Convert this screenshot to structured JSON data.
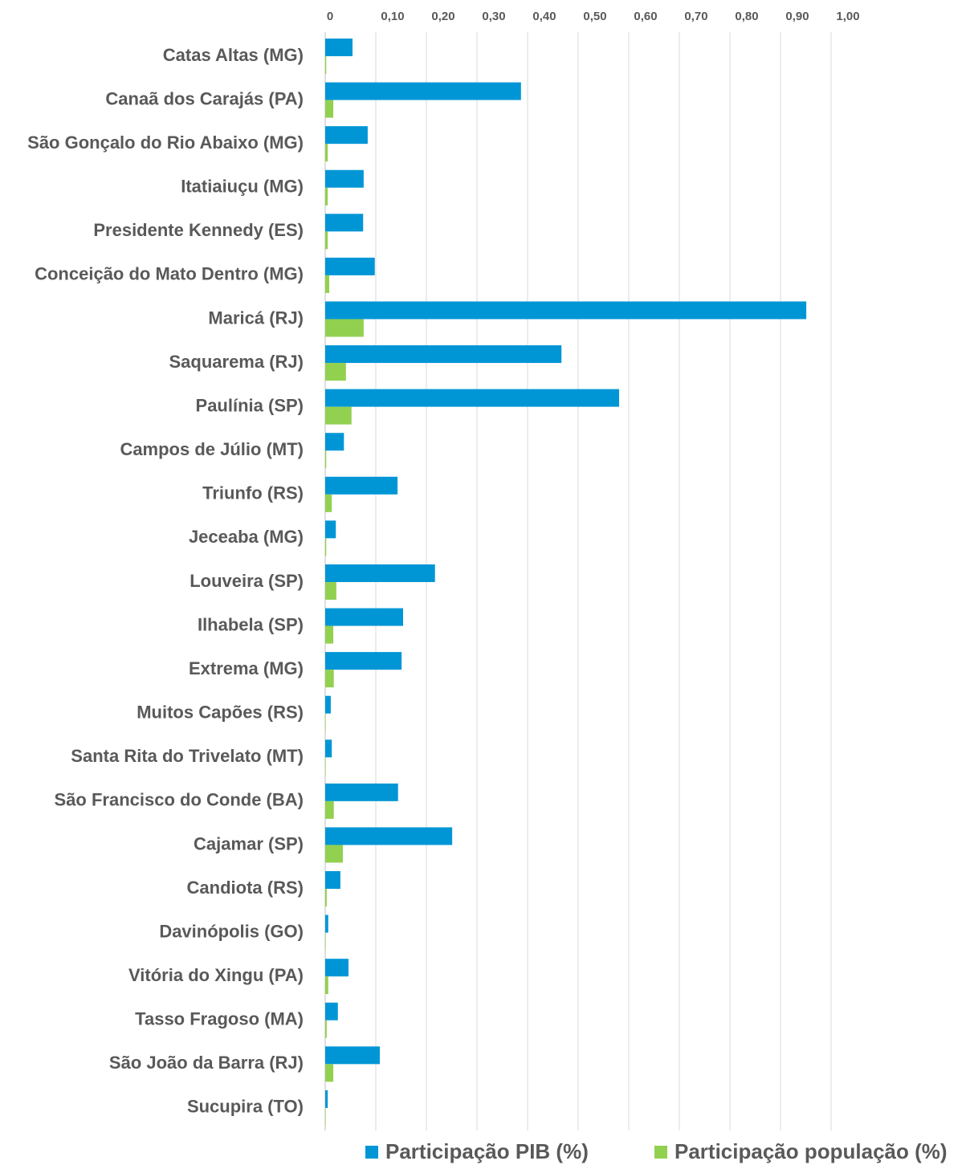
{
  "chart_data": {
    "type": "bar",
    "orientation": "horizontal",
    "categories": [
      "Catas Altas (MG)",
      "Canaã dos Carajás (PA)",
      "São Gonçalo do Rio Abaixo (MG)",
      "Itatiaiuçu (MG)",
      "Presidente Kennedy (ES)",
      "Conceição do Mato Dentro (MG)",
      "Maricá (RJ)",
      "Saquarema (RJ)",
      "Paulínia (SP)",
      "Campos de Júlio (MT)",
      "Triunfo (RS)",
      "Jeceaba (MG)",
      "Louveira (SP)",
      "Ilhabela (SP)",
      "Extrema (MG)",
      "Muitos Capões (RS)",
      "Santa Rita do Trivelato (MT)",
      "São Francisco do Conde (BA)",
      "Cajamar (SP)",
      "Candiota (RS)",
      "Davinópolis (GO)",
      "Vitória do Xingu (PA)",
      "Tasso Fragoso (MA)",
      "São João da Barra (RJ)",
      "Sucupira (TO)"
    ],
    "series": [
      {
        "name": "Participação PIB (%)",
        "color": "#0096d6",
        "values": [
          0.054,
          0.387,
          0.084,
          0.076,
          0.075,
          0.098,
          0.951,
          0.467,
          0.581,
          0.037,
          0.143,
          0.021,
          0.217,
          0.154,
          0.151,
          0.011,
          0.013,
          0.144,
          0.251,
          0.03,
          0.006,
          0.046,
          0.025,
          0.108,
          0.005
        ]
      },
      {
        "name": "Participação população (%)",
        "color": "#92d050",
        "values": [
          0.002,
          0.016,
          0.005,
          0.005,
          0.005,
          0.008,
          0.076,
          0.041,
          0.052,
          0.002,
          0.013,
          0.002,
          0.022,
          0.016,
          0.017,
          0.001,
          0.001,
          0.017,
          0.035,
          0.003,
          0.001,
          0.006,
          0.003,
          0.016,
          0.001
        ]
      }
    ],
    "xlim": [
      0,
      1.0
    ],
    "xticks": [
      0,
      {
        "value": 0.1,
        "label": "0,10"
      },
      {
        "value": 0.2,
        "label": "0,20"
      },
      {
        "value": 0.3,
        "label": "0,30"
      },
      {
        "value": 0.4,
        "label": "0,40"
      },
      {
        "value": 0.5,
        "label": "0,50"
      },
      {
        "value": 0.6,
        "label": "0,60"
      },
      {
        "value": 0.7,
        "label": "0,70"
      },
      {
        "value": 0.8,
        "label": "0,80"
      },
      {
        "value": 0.9,
        "label": "0,90"
      },
      {
        "value": 1.0,
        "label": "1,00"
      }
    ],
    "grid": true,
    "legend": "bottom"
  }
}
